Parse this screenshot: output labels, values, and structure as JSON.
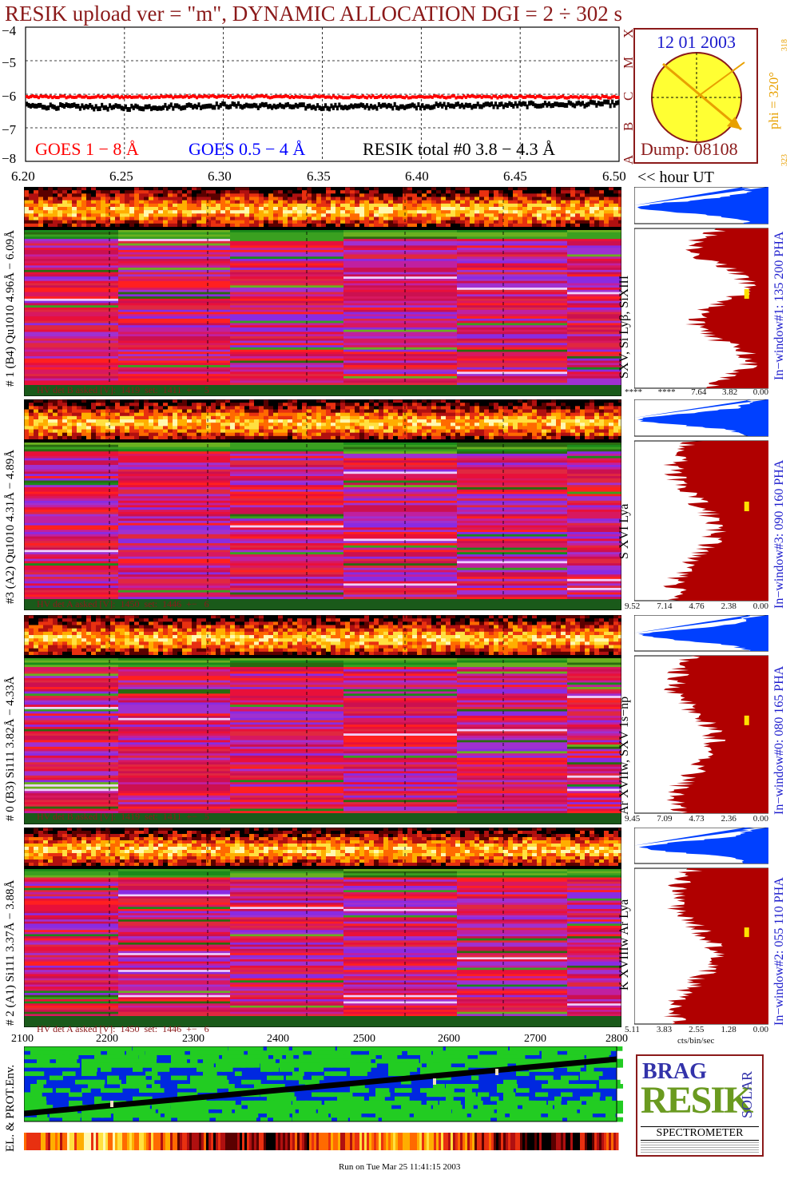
{
  "title": "RESIK upload ver = \"m\", DYNAMIC ALLOCATION  DGI =   2 ÷ 302 s",
  "goes_panel": {
    "yticks": [
      "−4",
      "−5",
      "−6",
      "−7",
      "−8"
    ],
    "legend_goes1": "GOES 1 − 8 Å",
    "legend_goes05": "GOES 0.5 − 4 Å",
    "legend_resik": "RESIK total #0  3.8 − 4.3 Å",
    "class_letters": [
      "A",
      "B",
      "C",
      "M",
      "X"
    ],
    "colors": {
      "goes1": "#ff0000",
      "goes05": "#0000ff",
      "resik": "#000000"
    }
  },
  "sun_panel": {
    "date": "12 01 2003",
    "phi_label": "phi = 320°",
    "phi_sub_top": "318",
    "phi_sub_bottom": "323",
    "dump": "Dump: 08108"
  },
  "time_axis": {
    "ticks": [
      "6.20",
      "6.25",
      "6.30",
      "6.35",
      "6.40",
      "6.45",
      "6.50"
    ],
    "unit_label": "<< hour UT"
  },
  "channels": [
    {
      "side_label": "# 1 (B4) Qu1010 4.96Å − 6.09Å",
      "line_label": "SXV, Si Lyβ, SiXIII",
      "window_label": "In−window#1:  135 200 PHA",
      "hv": {
        "asked_label": "HV det B asked [V]:",
        "asked": "1419",
        "set_label": "set:",
        "set": "1411",
        "pm": "+−",
        "dev": "5"
      },
      "pha_ticks": [
        "****",
        "****",
        "7.64",
        "3.82",
        "0.00"
      ]
    },
    {
      "side_label": "#3 (A2) Qu1010  4.31Å − 4.89Å",
      "line_label": "S XVI Lya",
      "window_label": "In−window#3:  090 160 PHA",
      "hv": {
        "asked_label": "HV det A asked [V]:",
        "asked": "1450",
        "set_label": "set:",
        "set": "1446",
        "pm": "+−",
        "dev": "6"
      },
      "pha_ticks": [
        "9.52",
        "7.14",
        "4.76",
        "2.38",
        "0.00"
      ]
    },
    {
      "side_label": "# 0 (B3) Si111  3.82Å − 4.33Å",
      "line_label": "Ar XVIIw,  SXV 1s−np",
      "window_label": "In−window#0:  080 165 PHA",
      "hv": {
        "asked_label": "HV det B asked [V]:",
        "asked": "1419",
        "set_label": "set:",
        "set": "1411",
        "pm": "+−",
        "dev": "5"
      },
      "pha_ticks": [
        "9.45",
        "7.09",
        "4.73",
        "2.36",
        "0.00"
      ]
    },
    {
      "side_label": "# 2 (A1) Si111  3.37Å − 3.88Å",
      "line_label": "K XVIIIw  Ar Lya",
      "window_label": "In−window#2:  055 110 PHA",
      "hv": {
        "asked_label": "HV det A asked [V]:",
        "asked": "1450",
        "set_label": "set:",
        "set": "1446",
        "pm": "+−",
        "dev": "6"
      },
      "pha_ticks": [
        "5.11",
        "3.83",
        "2.55",
        "1.28",
        "0.00"
      ]
    }
  ],
  "pha_unit": "cts/bin/sec",
  "orbit_axis": {
    "ticks": [
      "2100",
      "2200",
      "2300",
      "2400",
      "2500",
      "2600",
      "2700",
      "2800"
    ],
    "side_label": "EL. & PROT.Env."
  },
  "logo": {
    "letters_top": "BRAG",
    "letters_main": "RESIK",
    "letters_side": "SOLAR",
    "caption": "SPECTROMETER"
  },
  "footer": "Run on Tue Mar 25 11:41:15 2003",
  "chart_data": [
    {
      "type": "line",
      "title": "RESIK upload ver = \"m\", DYNAMIC ALLOCATION  DGI =   2 ÷ 302 s",
      "xlabel": "<< hour UT",
      "ylabel": "",
      "xlim": [
        6.2,
        6.5
      ],
      "ylim": [
        -8,
        -4
      ],
      "x_ticks": [
        "6.20",
        "6.25",
        "6.30",
        "6.35",
        "6.40",
        "6.45",
        "6.50"
      ],
      "y_ticks": [
        "−4",
        "−5",
        "−6",
        "−7",
        "−8"
      ],
      "grid": true,
      "series": [
        {
          "name": "GOES 1 − 8 Å",
          "x": [
            6.2,
            6.25,
            6.3,
            6.35,
            6.4,
            6.45,
            6.5
          ],
          "values": [
            -6.08,
            -6.08,
            -6.07,
            -6.08,
            -6.08,
            -6.08,
            -6.09
          ]
        },
        {
          "name": "GOES 0.5 − 4 Å",
          "x": [
            6.2,
            6.5
          ],
          "values": [
            null,
            null
          ]
        },
        {
          "name": "RESIK total #0  3.8 − 4.3 Å",
          "x": [
            6.2,
            6.25,
            6.3,
            6.35,
            6.4,
            6.45,
            6.5
          ],
          "values": [
            -6.35,
            -6.4,
            -6.33,
            -6.38,
            -6.35,
            -6.32,
            -6.28
          ]
        }
      ]
    }
  ]
}
